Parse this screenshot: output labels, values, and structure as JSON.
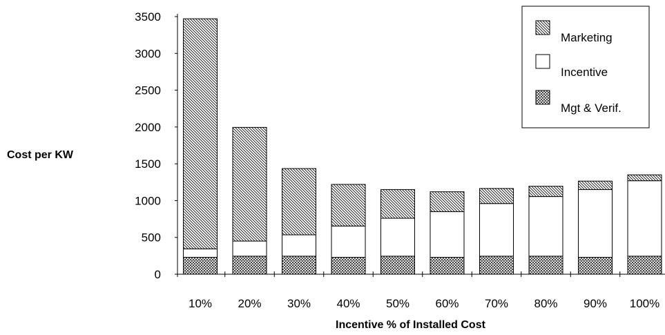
{
  "chart_data": {
    "type": "bar",
    "stacked": true,
    "ylabel": "Cost per KW",
    "xlabel": "Incentive % of Installed Cost",
    "categories": [
      "10%",
      "20%",
      "30%",
      "40%",
      "50%",
      "60%",
      "70%",
      "80%",
      "90%",
      "100%"
    ],
    "ylim": [
      0,
      3500
    ],
    "yticks": [
      0,
      500,
      1000,
      1500,
      2000,
      2500,
      3000,
      3500
    ],
    "grid": false,
    "legend_position": "top-right",
    "series": [
      {
        "name": "Mgt & Verif.",
        "pattern": "crosshatch",
        "values": [
          230,
          245,
          245,
          230,
          245,
          230,
          245,
          245,
          230,
          245
        ]
      },
      {
        "name": "Incentive",
        "pattern": "solid-white",
        "values": [
          115,
          205,
          290,
          425,
          515,
          620,
          715,
          810,
          920,
          1025
        ]
      },
      {
        "name": "Marketing",
        "pattern": "diagonal",
        "values": [
          3125,
          1545,
          900,
          565,
          390,
          270,
          205,
          140,
          115,
          80
        ]
      }
    ],
    "legend_order": [
      "Marketing",
      "Incentive",
      "Mgt & Verif."
    ]
  },
  "colors": {
    "stroke": "#000000",
    "fill": "#ffffff"
  }
}
